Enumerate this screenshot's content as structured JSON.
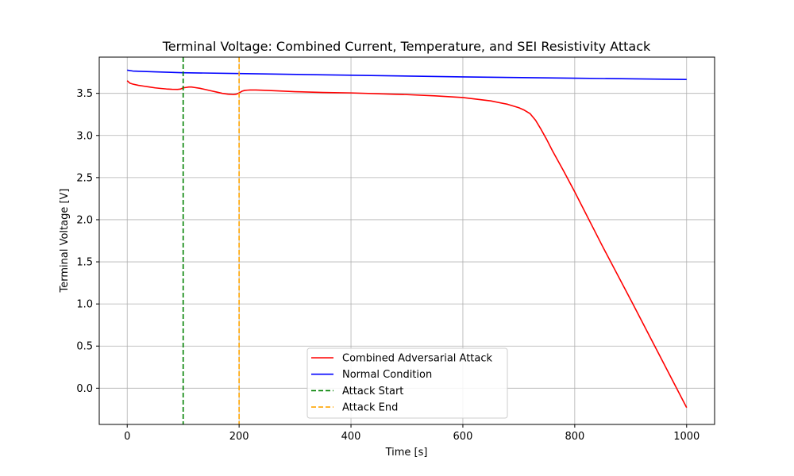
{
  "chart_data": {
    "type": "line",
    "title": "Terminal Voltage: Combined Current, Temperature, and SEI Resistivity Attack",
    "xlabel": "Time [s]",
    "ylabel": "Terminal Voltage [V]",
    "xlim": [
      -50,
      1050
    ],
    "ylim": [
      -0.43,
      3.93
    ],
    "xticks": [
      0,
      200,
      400,
      600,
      800,
      1000
    ],
    "xtick_labels": [
      "0",
      "200",
      "400",
      "600",
      "800",
      "1000"
    ],
    "yticks": [
      0.0,
      0.5,
      1.0,
      1.5,
      2.0,
      2.5,
      3.0,
      3.5
    ],
    "ytick_labels": [
      "0.0",
      "0.5",
      "1.0",
      "1.5",
      "2.0",
      "2.5",
      "3.0",
      "3.5"
    ],
    "grid": true,
    "legend_position": "lower center",
    "series": [
      {
        "name": "Combined Adversarial Attack",
        "color": "#ff0000",
        "style": "solid",
        "x": [
          0,
          5,
          10,
          20,
          30,
          40,
          50,
          60,
          70,
          80,
          90,
          95,
          100,
          105,
          110,
          115,
          120,
          130,
          140,
          150,
          160,
          170,
          180,
          190,
          195,
          200,
          205,
          210,
          215,
          220,
          230,
          250,
          300,
          350,
          400,
          450,
          500,
          550,
          600,
          650,
          680,
          700,
          710,
          720,
          730,
          740,
          750,
          760,
          780,
          800,
          850,
          900,
          950,
          1000
        ],
        "y": [
          3.65,
          3.62,
          3.61,
          3.595,
          3.585,
          3.575,
          3.565,
          3.558,
          3.552,
          3.548,
          3.547,
          3.55,
          3.565,
          3.57,
          3.575,
          3.575,
          3.57,
          3.56,
          3.545,
          3.53,
          3.515,
          3.5,
          3.49,
          3.485,
          3.49,
          3.505,
          3.525,
          3.535,
          3.538,
          3.54,
          3.54,
          3.535,
          3.52,
          3.51,
          3.505,
          3.495,
          3.485,
          3.47,
          3.45,
          3.41,
          3.37,
          3.33,
          3.3,
          3.26,
          3.18,
          3.07,
          2.95,
          2.82,
          2.58,
          2.33,
          1.68,
          1.05,
          0.41,
          -0.23
        ]
      },
      {
        "name": "Normal Condition",
        "color": "#0000ff",
        "style": "solid",
        "x": [
          0,
          10,
          50,
          100,
          200,
          400,
          600,
          800,
          1000
        ],
        "y": [
          3.775,
          3.765,
          3.755,
          3.745,
          3.735,
          3.715,
          3.695,
          3.68,
          3.665
        ]
      }
    ],
    "vlines": [
      {
        "name": "Attack Start",
        "x": 100,
        "color": "#008000",
        "style": "dashed"
      },
      {
        "name": "Attack End",
        "x": 200,
        "color": "#ffa500",
        "style": "dashed"
      }
    ]
  }
}
